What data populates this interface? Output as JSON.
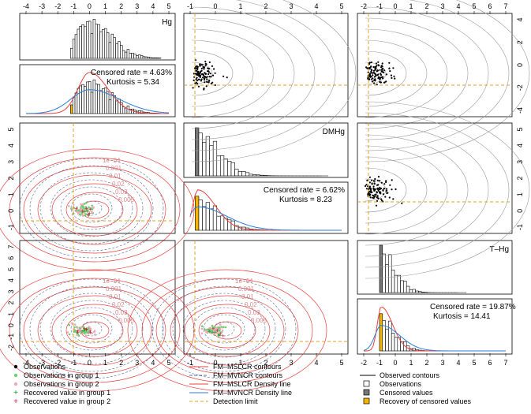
{
  "chart_data": {
    "type": "scatter",
    "variables": [
      "Hg",
      "DMHg",
      "T–Hg"
    ],
    "axes": {
      "Hg": {
        "ticks": [
          "-4",
          "-3",
          "-2",
          "-1",
          "0",
          "1",
          "2",
          "3",
          "4",
          "5"
        ],
        "range": [
          -4,
          5
        ]
      },
      "DMHg": {
        "ticks": [
          "-1",
          "0",
          "1",
          "2",
          "3",
          "4",
          "5"
        ],
        "range": [
          -1,
          5
        ]
      },
      "T-Hg": {
        "ticks": [
          "-2",
          "-1",
          "0",
          "1",
          "2",
          "3",
          "4",
          "5",
          "6",
          "7"
        ],
        "range": [
          -2,
          7
        ]
      },
      "row1_right_ticks": [
        "-4",
        "-2",
        "0",
        "2",
        "4"
      ],
      "row2_left_ticks": [
        "-1",
        "0",
        "1",
        "2",
        "3",
        "4",
        "5"
      ],
      "row2_right_ticks": [
        "-1",
        "0",
        "1",
        "2",
        "3",
        "4",
        "5"
      ],
      "row3_left_ticks": [
        "-2",
        "-1",
        "0",
        "1",
        "2",
        "3",
        "4",
        "5",
        "6",
        "7"
      ]
    },
    "detection_limits": {
      "Hg": -1.1,
      "DMHg": -0.8,
      "T-Hg": -1.0
    },
    "diagonal": [
      {
        "var": "Hg",
        "label": "Hg",
        "censored_rate": "Censored rate = 4.63%",
        "kurtosis": "Kurtosis = 5.34"
      },
      {
        "var": "DMHg",
        "label": "DMHg",
        "censored_rate": "Censored rate = 6.62%",
        "kurtosis": "Kurtosis = 8.23"
      },
      {
        "var": "T-Hg",
        "label": "T–Hg",
        "censored_rate": "Censored rate = 19.87%",
        "kurtosis": "Kurtosis = 14.41"
      }
    ],
    "contour_labels": [
      "1e−04",
      "0.001",
      "0.01",
      "0.02",
      "0.03",
      "0.005"
    ],
    "legend": {
      "col1": [
        "Observations",
        "Observations in group 1",
        "Observations in group 2",
        "Recovered value in group 1",
        "Recovered value in group 2"
      ],
      "col2": [
        "FM–MSLCR contours",
        "FM–MVNCR contours",
        "FM–MSLCR Density line",
        "FM–MVNCR Density line",
        "Detection limit"
      ],
      "col3": [
        "Observed contours",
        "Observations",
        "Censored values",
        "Recovery of censored values"
      ]
    },
    "colors": {
      "mslcr": "#e8413f",
      "mvncr": "#2b7fd6",
      "mvncr_contour": "#5a6fa0",
      "detection": "#e0a020",
      "group1": "#6fcf6f",
      "group2": "#f2a7c0",
      "recovered1": "#1a9a1a",
      "recovered2": "#c0243a",
      "observed_contour": "#9a9a9a",
      "censored_bar": "#777777",
      "recovered_bar": "#f5b400"
    }
  }
}
